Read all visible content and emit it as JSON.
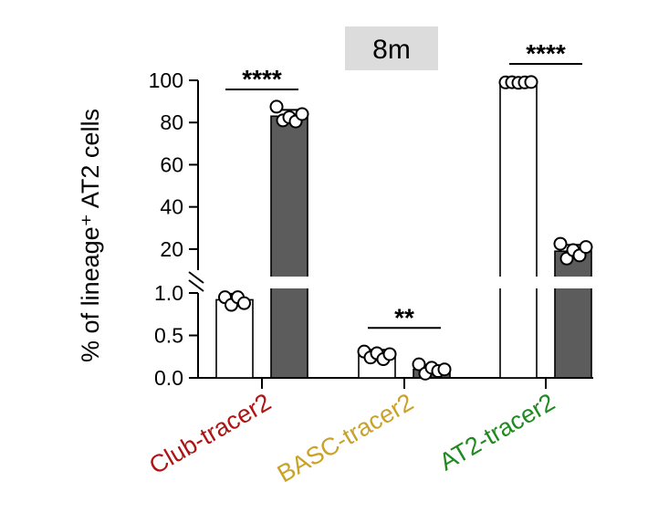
{
  "chart_data": {
    "type": "bar",
    "panel_label": "8m",
    "ylabel": "% of lineage⁺ AT2 cells",
    "y_axis_lower": {
      "range": [
        0,
        1.0
      ],
      "ticks": [
        "0.0",
        "0.5",
        "1.0"
      ]
    },
    "y_axis_upper": {
      "range": [
        10,
        100
      ],
      "ticks": [
        "20",
        "40",
        "60",
        "80",
        "100"
      ]
    },
    "axis_break": true,
    "categories": [
      "Club-tracer2",
      "BASC-tracer2",
      "AT2-tracer2"
    ],
    "category_colors": [
      "#b01313",
      "#c9a227",
      "#1f8a1f"
    ],
    "series": [
      {
        "fill": "#ffffff",
        "values": [
          0.92,
          0.27,
          99.0
        ],
        "errors": [
          0.07,
          0.06,
          0.5
        ],
        "points": [
          [
            0.95,
            0.86,
            0.95,
            0.88
          ],
          [
            0.31,
            0.24,
            0.29,
            0.22,
            0.28
          ],
          [
            99.0,
            99.1,
            98.8,
            99.0,
            99.2
          ]
        ]
      },
      {
        "fill": "#5c5c5c",
        "values": [
          83.0,
          0.1,
          19.0
        ],
        "errors": [
          3.0,
          0.04,
          3.0
        ],
        "points": [
          [
            87.5,
            81.0,
            82.5,
            80.5,
            84.0
          ],
          [
            0.16,
            0.05,
            0.12,
            0.08,
            0.1
          ],
          [
            22.5,
            15.5,
            19.5,
            17.0,
            21.0
          ]
        ]
      }
    ],
    "significance": [
      "****",
      "**",
      "****"
    ]
  }
}
